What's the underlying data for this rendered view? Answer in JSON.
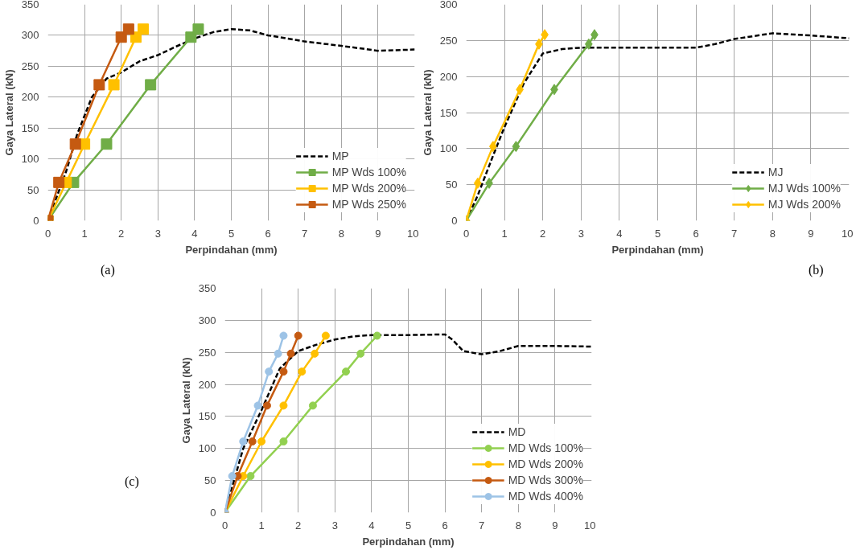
{
  "chart_data": [
    {
      "type": "line",
      "xlabel": "Perpindahan (mm)",
      "ylabel": "Gaya Lateral (kN)",
      "annotations": [
        "(a)"
      ],
      "xlim": [
        0,
        10
      ],
      "ylim": [
        0,
        350
      ],
      "xticks": [
        0,
        1,
        2,
        3,
        4,
        5,
        6,
        7,
        8,
        9,
        10
      ],
      "yticks": [
        0,
        50,
        100,
        150,
        200,
        250,
        300,
        350
      ],
      "grid": true,
      "legend": "bottom right",
      "series": [
        {
          "name": "MP",
          "color": "#000000",
          "line_style": "dashed",
          "marker": "none",
          "x": [
            0,
            0.5,
            0.8,
            1.2,
            1.6,
            2,
            2.5,
            3,
            3.5,
            4,
            4.5,
            5,
            5.5,
            6,
            7,
            8,
            9,
            10
          ],
          "values": [
            0,
            80,
            140,
            200,
            230,
            240,
            258,
            268,
            282,
            295,
            305,
            310,
            308,
            300,
            290,
            283,
            275,
            277
          ]
        },
        {
          "name": "MP Wds 100%",
          "color": "#70ad47",
          "marker": "square",
          "x": [
            0,
            0.7,
            1.6,
            2.8,
            3.9,
            4.1
          ],
          "values": [
            0,
            62,
            124,
            220,
            297,
            310
          ]
        },
        {
          "name": "MP Wds 200%",
          "color": "#ffc000",
          "marker": "square",
          "x": [
            0,
            0.5,
            1,
            1.8,
            2.4,
            2.6
          ],
          "values": [
            0,
            62,
            124,
            220,
            297,
            310
          ]
        },
        {
          "name": "MP Wds 250%",
          "color": "#c55a11",
          "marker": "square",
          "x": [
            0,
            0.3,
            0.75,
            1.4,
            2,
            2.2
          ],
          "values": [
            0,
            62,
            124,
            220,
            297,
            310
          ]
        }
      ]
    },
    {
      "type": "line",
      "xlabel": "Perpindahan (mm)",
      "ylabel": "Gaya Lateral (kN)",
      "annotations": [
        "(b)"
      ],
      "xlim": [
        0,
        10
      ],
      "ylim": [
        0,
        300
      ],
      "xticks": [
        0,
        1,
        2,
        3,
        4,
        5,
        6,
        7,
        8,
        9,
        10
      ],
      "yticks": [
        0,
        50,
        100,
        150,
        200,
        250,
        300
      ],
      "grid": true,
      "legend": "bottom right",
      "series": [
        {
          "name": "MJ",
          "color": "#000000",
          "line_style": "dashed",
          "marker": "none",
          "x": [
            0,
            0.3,
            0.7,
            1,
            1.5,
            2,
            2.5,
            3,
            4,
            5,
            6,
            6.5,
            7,
            8,
            9,
            10
          ],
          "values": [
            0,
            35,
            90,
            130,
            190,
            232,
            238,
            240,
            240,
            240,
            240,
            245,
            252,
            260,
            257,
            253
          ]
        },
        {
          "name": "MJ Wds 100%",
          "color": "#70ad47",
          "marker": "diamond",
          "x": [
            0,
            0.6,
            1.3,
            2.3,
            3.2,
            3.35
          ],
          "values": [
            0,
            52,
            103,
            182,
            245,
            258
          ]
        },
        {
          "name": "MJ Wds 200%",
          "color": "#ffc000",
          "marker": "diamond",
          "x": [
            0,
            0.3,
            0.7,
            1.4,
            1.9,
            2.05
          ],
          "values": [
            0,
            52,
            103,
            182,
            245,
            258
          ]
        }
      ]
    },
    {
      "type": "line",
      "xlabel": "Perpindahan (mm)",
      "ylabel": "Gaya Lateral (kN)",
      "annotations": [
        "(c)"
      ],
      "xlim": [
        0,
        10
      ],
      "ylim": [
        0,
        350
      ],
      "xticks": [
        0,
        1,
        2,
        3,
        4,
        5,
        6,
        7,
        8,
        9,
        10
      ],
      "yticks": [
        0,
        50,
        100,
        150,
        200,
        250,
        300,
        350
      ],
      "grid": true,
      "legend": "bottom right",
      "series": [
        {
          "name": "MD",
          "color": "#000000",
          "line_style": "dashed",
          "marker": "none",
          "x": [
            0,
            0.5,
            1,
            1.5,
            2,
            2.5,
            3,
            3.5,
            4,
            5,
            6,
            6.2,
            6.5,
            7,
            7.5,
            8,
            9,
            10
          ],
          "values": [
            0,
            100,
            160,
            225,
            252,
            262,
            270,
            275,
            277,
            277,
            278,
            270,
            252,
            247,
            252,
            260,
            260,
            259
          ]
        },
        {
          "name": "MD Wds 100%",
          "color": "#92d050",
          "marker": "circle",
          "x": [
            0,
            0.7,
            1.6,
            2.4,
            3.3,
            3.7,
            4.15
          ],
          "values": [
            0,
            57,
            111,
            167,
            220,
            248,
            276
          ]
        },
        {
          "name": "MD Wds 200%",
          "color": "#ffc000",
          "marker": "circle",
          "x": [
            0,
            0.5,
            1,
            1.6,
            2.1,
            2.45,
            2.75
          ],
          "values": [
            0,
            57,
            111,
            167,
            220,
            248,
            276
          ]
        },
        {
          "name": "MD Wds 300%",
          "color": "#c55a11",
          "marker": "circle",
          "x": [
            0,
            0.35,
            0.75,
            1.15,
            1.6,
            1.8,
            2
          ],
          "values": [
            0,
            57,
            111,
            167,
            220,
            248,
            276
          ]
        },
        {
          "name": "MD Wds 400%",
          "color": "#9dc3e6",
          "marker": "circle",
          "x": [
            0,
            0.2,
            0.5,
            0.9,
            1.2,
            1.45,
            1.6
          ],
          "values": [
            0,
            57,
            111,
            167,
            220,
            248,
            276
          ]
        }
      ]
    }
  ]
}
